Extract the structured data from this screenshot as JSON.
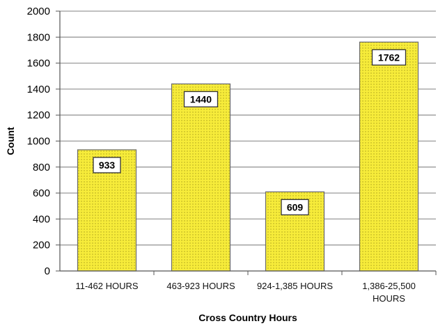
{
  "chart_data": {
    "type": "bar",
    "categories": [
      [
        "11-462 HOURS"
      ],
      [
        "463-923 HOURS"
      ],
      [
        "924-1,385 HOURS"
      ],
      [
        "1,386-25,500",
        "HOURS"
      ]
    ],
    "values": [
      933,
      1440,
      609,
      1762
    ],
    "data_labels": [
      "933",
      "1440",
      "609",
      "1762"
    ],
    "xlabel": "Cross Country Hours",
    "ylabel": "Count",
    "ylim": [
      0,
      2000
    ],
    "yticks": [
      0,
      200,
      400,
      600,
      800,
      1000,
      1200,
      1400,
      1600,
      1800,
      2000
    ],
    "grid": true,
    "legend": "none",
    "colors": {
      "bar_fill": "#f7ec3a",
      "bar_stroke": "#6b6b6b",
      "grid": "#9a9a9a",
      "axis": "#555555",
      "label_box_fill": "#ffffff",
      "label_box_stroke": "#333333"
    }
  }
}
